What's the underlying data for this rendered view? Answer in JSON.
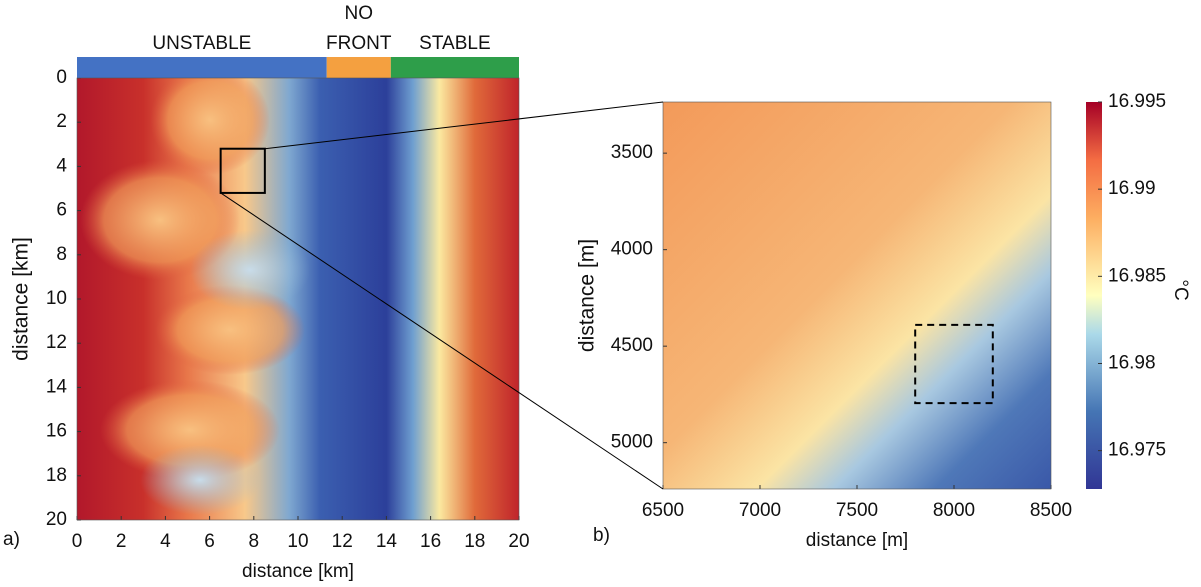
{
  "chart_data": [
    {
      "type": "heatmap",
      "panel_label": "a)",
      "xlabel": "distance [km]",
      "ylabel": "distance [km]",
      "xlim": [
        0,
        20
      ],
      "ylim": [
        0,
        20
      ],
      "y_reversed": true,
      "xticks": [
        0,
        2,
        4,
        6,
        8,
        10,
        12,
        14,
        16,
        18,
        20
      ],
      "yticks": [
        0,
        2,
        4,
        6,
        8,
        10,
        12,
        14,
        16,
        18,
        20
      ],
      "regimes": [
        {
          "name": [
            "UNSTABLE"
          ],
          "color": "#4472c4",
          "range": [
            0,
            11.3
          ]
        },
        {
          "name": [
            "NO",
            "FRONT"
          ],
          "color": "#f4a040",
          "range": [
            11.3,
            14.2
          ]
        },
        {
          "name": [
            "STABLE"
          ],
          "color": "#2e9e4a",
          "range": [
            14.2,
            20
          ]
        }
      ],
      "zoom_box": {
        "x": [
          6.5,
          8.5
        ],
        "y": [
          3.2,
          5.2
        ]
      }
    },
    {
      "type": "heatmap",
      "panel_label": "b)",
      "xlabel": "distance [m]",
      "ylabel": "distance [m]",
      "xlim": [
        6500,
        8500
      ],
      "ylim": [
        3235,
        5240
      ],
      "y_reversed": true,
      "xticks": [
        6500,
        7000,
        7500,
        8000,
        8500
      ],
      "yticks": [
        3500,
        4000,
        4500,
        5000
      ],
      "dashed_box": {
        "x": [
          7800,
          8200
        ],
        "y": [
          4390,
          4795
        ]
      },
      "colorbar": {
        "label": "°C",
        "lim": [
          16.9728,
          16.995
        ],
        "ticks": [
          16.975,
          16.98,
          16.985,
          16.99,
          16.995
        ]
      }
    }
  ]
}
